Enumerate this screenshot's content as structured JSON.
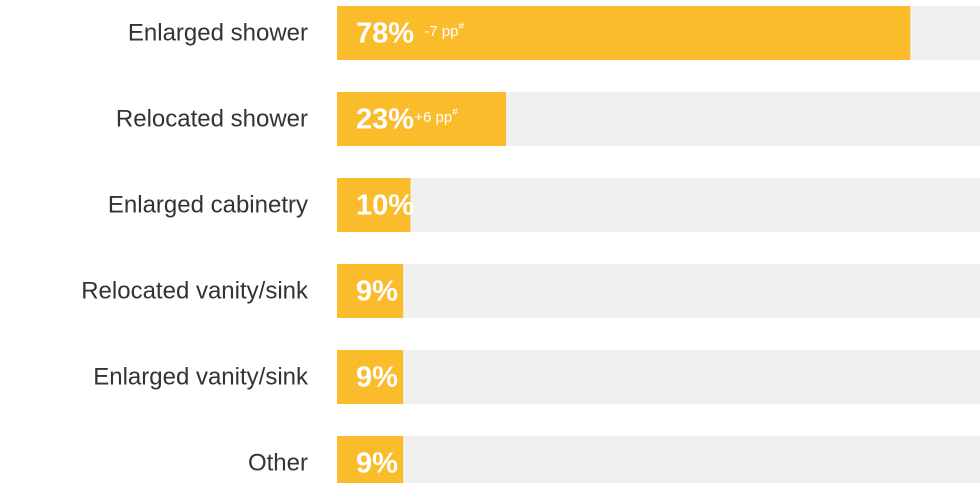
{
  "chart_data": {
    "type": "bar",
    "orientation": "horizontal",
    "categories": [
      "Enlarged shower",
      "Relocated shower",
      "Enlarged cabinetry",
      "Relocated vanity/sink",
      "Enlarged vanity/sink",
      "Other"
    ],
    "values": [
      78,
      23,
      10,
      9,
      9,
      9
    ],
    "value_labels": [
      "78%",
      "23%",
      "10%",
      "9%",
      "9%",
      "9%"
    ],
    "changes": [
      {
        "text": "-7 pp",
        "note": "#"
      },
      {
        "text": "+6 pp",
        "note": "#"
      }
    ],
    "color": "#fbbc2c",
    "track_color": "#f0f0f0"
  }
}
